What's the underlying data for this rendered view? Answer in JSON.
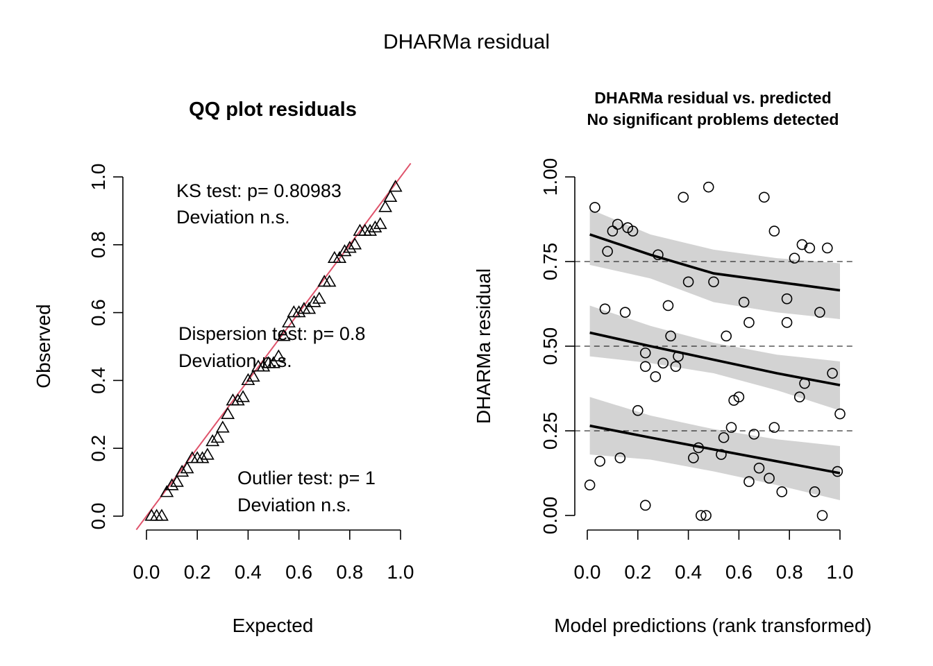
{
  "title": "DHARMa residual",
  "chart_data": [
    {
      "type": "scatter",
      "title": "QQ plot residuals",
      "xlabel": "Expected",
      "ylabel": "Observed",
      "xlim": [
        0,
        1
      ],
      "ylim": [
        0,
        1
      ],
      "xticks": [
        "0.0",
        "0.2",
        "0.4",
        "0.6",
        "0.8",
        "1.0"
      ],
      "yticks": [
        "0.0",
        "0.2",
        "0.4",
        "0.6",
        "0.8",
        "1.0"
      ],
      "reference_line": {
        "intercept": 0,
        "slope": 1,
        "color": "#DF536B"
      },
      "annotations": [
        [
          "KS test: p= 0.80983",
          "Deviation  n.s."
        ],
        [
          "Dispersion test: p= 0.8",
          "Deviation  n.s."
        ],
        [
          "Outlier test: p= 1",
          "Deviation  n.s."
        ]
      ],
      "series": [
        {
          "marker": "triangle",
          "x": [
            0.02,
            0.04,
            0.06,
            0.08,
            0.1,
            0.12,
            0.14,
            0.16,
            0.18,
            0.2,
            0.22,
            0.24,
            0.26,
            0.28,
            0.3,
            0.32,
            0.34,
            0.36,
            0.38,
            0.4,
            0.42,
            0.44,
            0.46,
            0.48,
            0.5,
            0.52,
            0.54,
            0.56,
            0.58,
            0.6,
            0.62,
            0.64,
            0.66,
            0.68,
            0.7,
            0.72,
            0.74,
            0.76,
            0.78,
            0.8,
            0.82,
            0.84,
            0.86,
            0.88,
            0.9,
            0.92,
            0.94,
            0.96,
            0.98
          ],
          "y": [
            0.0,
            0.0,
            0.0,
            0.07,
            0.09,
            0.1,
            0.13,
            0.14,
            0.17,
            0.17,
            0.17,
            0.18,
            0.22,
            0.23,
            0.26,
            0.3,
            0.34,
            0.34,
            0.35,
            0.4,
            0.41,
            0.44,
            0.44,
            0.45,
            0.45,
            0.47,
            0.53,
            0.57,
            0.6,
            0.6,
            0.61,
            0.61,
            0.63,
            0.64,
            0.69,
            0.69,
            0.76,
            0.76,
            0.78,
            0.79,
            0.8,
            0.84,
            0.84,
            0.84,
            0.85,
            0.86,
            0.91,
            0.94,
            0.97
          ]
        }
      ]
    },
    {
      "type": "scatter",
      "title": "DHARMa residual vs. predicted",
      "subtitle": "No significant problems detected",
      "xlabel": "Model predictions (rank transformed)",
      "ylabel": "DHARMa residual",
      "xlim": [
        0,
        1
      ],
      "ylim": [
        0,
        1
      ],
      "xticks": [
        "0.0",
        "0.2",
        "0.4",
        "0.6",
        "0.8",
        "1.0"
      ],
      "yticks": [
        "0.00",
        "0.25",
        "0.50",
        "0.75",
        "1.00"
      ],
      "hlines": [
        0.25,
        0.5,
        0.75
      ],
      "points": {
        "x": [
          0.01,
          0.03,
          0.05,
          0.07,
          0.08,
          0.1,
          0.12,
          0.13,
          0.15,
          0.16,
          0.18,
          0.2,
          0.23,
          0.23,
          0.23,
          0.27,
          0.28,
          0.3,
          0.32,
          0.33,
          0.35,
          0.36,
          0.38,
          0.4,
          0.42,
          0.44,
          0.45,
          0.47,
          0.48,
          0.5,
          0.53,
          0.54,
          0.55,
          0.57,
          0.58,
          0.6,
          0.62,
          0.64,
          0.64,
          0.66,
          0.68,
          0.7,
          0.72,
          0.74,
          0.74,
          0.77,
          0.79,
          0.79,
          0.82,
          0.84,
          0.85,
          0.86,
          0.88,
          0.9,
          0.92,
          0.93,
          0.95,
          0.97,
          0.99,
          1.0
        ],
        "y": [
          0.09,
          0.91,
          0.16,
          0.61,
          0.78,
          0.84,
          0.86,
          0.17,
          0.6,
          0.85,
          0.84,
          0.31,
          0.48,
          0.44,
          0.03,
          0.41,
          0.77,
          0.45,
          0.62,
          0.53,
          0.44,
          0.47,
          0.94,
          0.69,
          0.17,
          0.2,
          0.0,
          0.0,
          0.97,
          0.69,
          0.18,
          0.23,
          0.53,
          0.26,
          0.34,
          0.35,
          0.63,
          0.1,
          0.57,
          0.24,
          0.14,
          0.94,
          0.11,
          0.84,
          0.26,
          0.07,
          0.64,
          0.57,
          0.76,
          0.35,
          0.8,
          0.39,
          0.79,
          0.07,
          0.6,
          0.0,
          0.79,
          0.42,
          0.13,
          0.3
        ]
      },
      "quantile_fits": [
        {
          "quantile": 0.25,
          "x": [
            0.01,
            0.25,
            0.5,
            0.75,
            1.0
          ],
          "fit": [
            0.265,
            0.23,
            0.195,
            0.16,
            0.125
          ],
          "lower": [
            0.18,
            0.165,
            0.13,
            0.09,
            0.045
          ],
          "upper": [
            0.35,
            0.295,
            0.255,
            0.225,
            0.205
          ]
        },
        {
          "quantile": 0.5,
          "x": [
            0.01,
            0.25,
            0.5,
            0.75,
            1.0
          ],
          "fit": [
            0.54,
            0.5,
            0.46,
            0.42,
            0.385
          ],
          "lower": [
            0.47,
            0.45,
            0.42,
            0.37,
            0.31
          ],
          "upper": [
            0.62,
            0.56,
            0.51,
            0.475,
            0.455
          ]
        },
        {
          "quantile": 0.75,
          "x": [
            0.01,
            0.25,
            0.5,
            0.75,
            1.0
          ],
          "fit": [
            0.83,
            0.77,
            0.715,
            0.69,
            0.665
          ],
          "lower": [
            0.74,
            0.7,
            0.63,
            0.6,
            0.58
          ],
          "upper": [
            0.905,
            0.83,
            0.785,
            0.76,
            0.745
          ]
        }
      ]
    }
  ]
}
